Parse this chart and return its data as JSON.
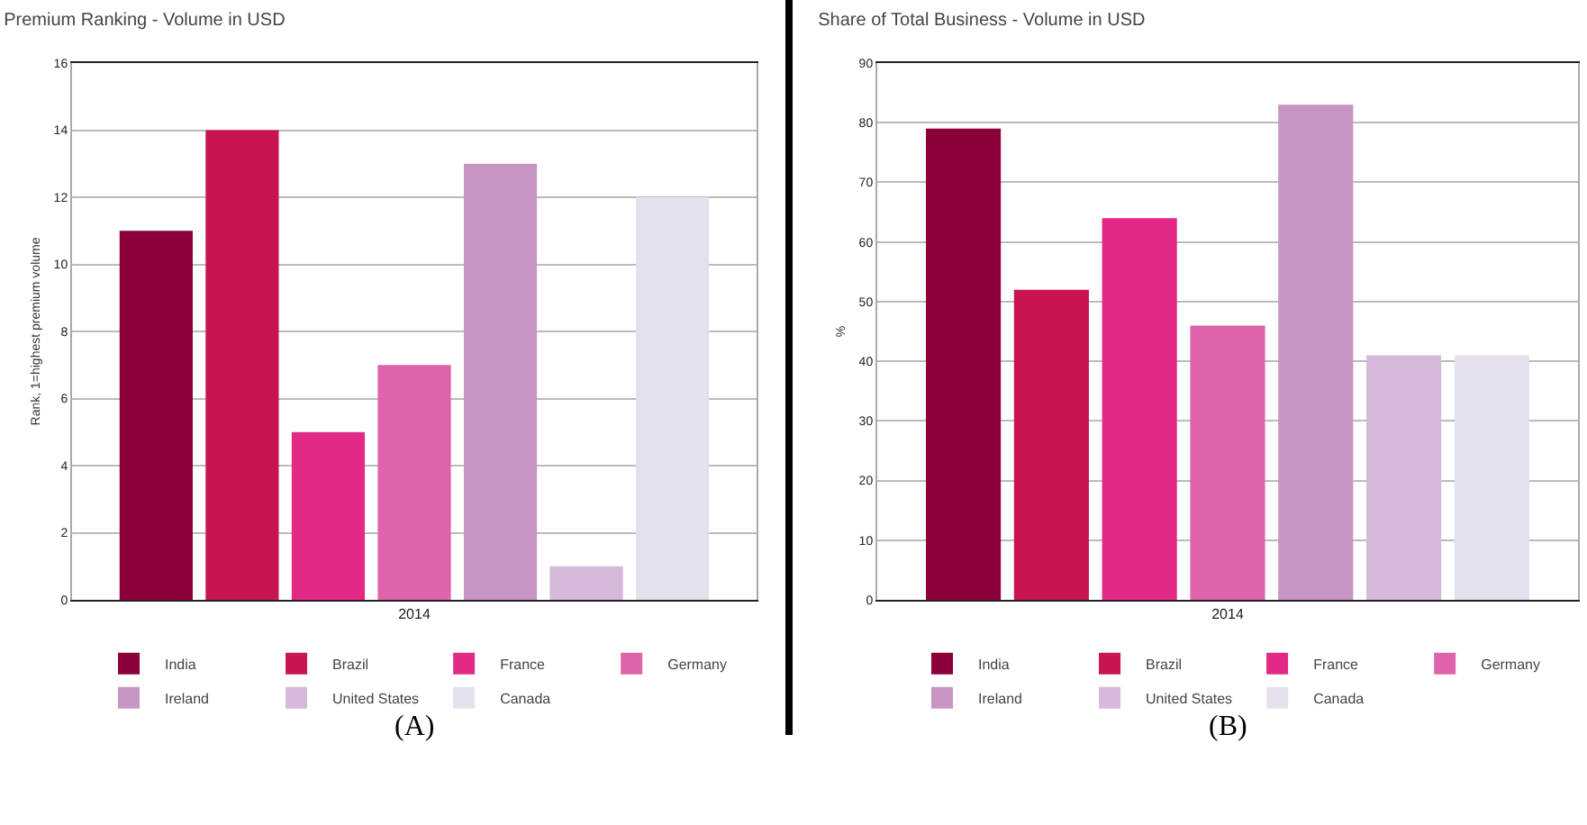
{
  "chart_data": [
    {
      "type": "bar",
      "title": "Premium Ranking - Volume in USD",
      "ylabel": "Rank, 1=highest premium volume",
      "categories": [
        "2014"
      ],
      "ylim": [
        0,
        16
      ],
      "yticks": [
        0,
        2,
        4,
        6,
        8,
        10,
        12,
        14,
        16
      ],
      "grid": "y",
      "legend": "bottom",
      "annotations": [
        "(A)"
      ],
      "series": [
        {
          "name": "India",
          "color": "#8b0038",
          "values": [
            11
          ]
        },
        {
          "name": "Brazil",
          "color": "#c8144f",
          "values": [
            14
          ]
        },
        {
          "name": "France",
          "color": "#e32985",
          "values": [
            5
          ]
        },
        {
          "name": "Germany",
          "color": "#df62ab",
          "values": [
            7
          ]
        },
        {
          "name": "Ireland",
          "color": "#c894c4",
          "values": [
            13
          ]
        },
        {
          "name": "United States",
          "color": "#d6b8db",
          "values": [
            1
          ]
        },
        {
          "name": "Canada",
          "color": "#e5e0ec",
          "values": [
            12
          ]
        }
      ]
    },
    {
      "type": "bar",
      "title": "Share of Total Business - Volume in USD",
      "ylabel": "%",
      "categories": [
        "2014"
      ],
      "ylim": [
        0,
        90
      ],
      "yticks": [
        0,
        10,
        20,
        30,
        40,
        50,
        60,
        70,
        80,
        90
      ],
      "grid": "y",
      "legend": "bottom",
      "annotations": [
        "(B)"
      ],
      "series": [
        {
          "name": "India",
          "color": "#8b0038",
          "values": [
            79
          ]
        },
        {
          "name": "Brazil",
          "color": "#c8144f",
          "values": [
            52
          ]
        },
        {
          "name": "France",
          "color": "#e32985",
          "values": [
            64
          ]
        },
        {
          "name": "Germany",
          "color": "#df62ab",
          "values": [
            46
          ]
        },
        {
          "name": "Ireland",
          "color": "#c894c4",
          "values": [
            83
          ]
        },
        {
          "name": "United States",
          "color": "#d6b8db",
          "values": [
            41
          ]
        },
        {
          "name": "Canada",
          "color": "#e5e0ec",
          "values": [
            41
          ]
        }
      ]
    }
  ]
}
